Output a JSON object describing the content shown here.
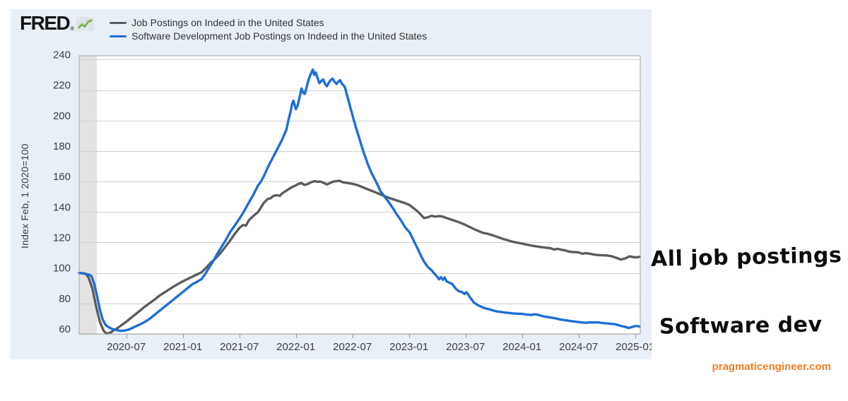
{
  "header": {
    "logo_text": "FRED",
    "logo_reg": "®",
    "legend": [
      {
        "label": "Job Postings on Indeed in the United States",
        "color": "#5a5c5e"
      },
      {
        "label": "Software Development Job Postings on Indeed in the United States",
        "color": "#1e6ed6"
      }
    ]
  },
  "y_axis_title": "Index Feb, 1 2020=100",
  "annotations": {
    "all_jobs": "All job postings",
    "software_dev": "Software dev"
  },
  "watermark": {
    "text": "pragmaticengineer.com",
    "color": "#f47d20"
  },
  "chart_data": {
    "type": "line",
    "title": "",
    "xlabel": "",
    "ylabel": "Index Feb, 1 2020=100",
    "x_unit": "months since 2020-02",
    "xlim": [
      0,
      59.55
    ],
    "ylim": [
      60,
      242.5
    ],
    "grid": true,
    "plot_bg": "#ffffff",
    "canvas_bg": "#e8eff6",
    "grid_color": "#d0d0d0",
    "frame_color": "#a6a6a6",
    "tick_text_color": "#404040",
    "recession_band_months": [
      0,
      1.875
    ],
    "recession_band_color": "#e3e3e3",
    "y_ticks": [
      60,
      80,
      100,
      120,
      140,
      160,
      180,
      200,
      220,
      240
    ],
    "x_ticks": [
      {
        "m": 5,
        "label": "2020-07"
      },
      {
        "m": 11,
        "label": "2021-01"
      },
      {
        "m": 17,
        "label": "2021-07"
      },
      {
        "m": 23,
        "label": "2022-01"
      },
      {
        "m": 29,
        "label": "2022-07"
      },
      {
        "m": 35,
        "label": "2023-01"
      },
      {
        "m": 41,
        "label": "2023-07"
      },
      {
        "m": 47,
        "label": "2024-01"
      },
      {
        "m": 53,
        "label": "2024-07"
      },
      {
        "m": 59,
        "label": "2025-01"
      }
    ],
    "series": [
      {
        "name": "Job Postings on Indeed in the United States",
        "color": "#5a5c5e",
        "points": [
          [
            0,
            100
          ],
          [
            0.7,
            99.5
          ],
          [
            1,
            97
          ],
          [
            1.4,
            90
          ],
          [
            1.8,
            78
          ],
          [
            2.2,
            68
          ],
          [
            2.6,
            62
          ],
          [
            2.9,
            60.3
          ],
          [
            3.3,
            60.8
          ],
          [
            3.7,
            62.5
          ],
          [
            4,
            63.5
          ],
          [
            4.5,
            65.8
          ],
          [
            5,
            68
          ],
          [
            5.5,
            70.5
          ],
          [
            6,
            73
          ],
          [
            6.5,
            75.5
          ],
          [
            7,
            78
          ],
          [
            7.5,
            80.3
          ],
          [
            8,
            82.5
          ],
          [
            8.5,
            85
          ],
          [
            9,
            87
          ],
          [
            9.5,
            89
          ],
          [
            10,
            91
          ],
          [
            10.5,
            92.8
          ],
          [
            11,
            94.5
          ],
          [
            11.5,
            96
          ],
          [
            12,
            97.5
          ],
          [
            12.5,
            99
          ],
          [
            13,
            100.5
          ],
          [
            13.5,
            103.5
          ],
          [
            14,
            107
          ],
          [
            14.3,
            108.5
          ],
          [
            15,
            113
          ],
          [
            15.5,
            117
          ],
          [
            16,
            121
          ],
          [
            16.5,
            125.5
          ],
          [
            17,
            129.5
          ],
          [
            17.4,
            131.5
          ],
          [
            17.7,
            131
          ],
          [
            18,
            134.5
          ],
          [
            18.5,
            137.5
          ],
          [
            19,
            140
          ],
          [
            19.3,
            143
          ],
          [
            19.6,
            146
          ],
          [
            20,
            148.5
          ],
          [
            20.3,
            149
          ],
          [
            20.6,
            150.5
          ],
          [
            21,
            151
          ],
          [
            21.3,
            150.6
          ],
          [
            21.6,
            152.5
          ],
          [
            22,
            154
          ],
          [
            22.5,
            156
          ],
          [
            23,
            157.5
          ],
          [
            23.3,
            158.5
          ],
          [
            23.6,
            159
          ],
          [
            23.9,
            157.8
          ],
          [
            24.2,
            158.2
          ],
          [
            24.6,
            159.5
          ],
          [
            25,
            160.3
          ],
          [
            25.3,
            159.8
          ],
          [
            25.6,
            160
          ],
          [
            26,
            159
          ],
          [
            26.3,
            158
          ],
          [
            26.6,
            159
          ],
          [
            27,
            160
          ],
          [
            27.3,
            160.2
          ],
          [
            27.6,
            160.5
          ],
          [
            28,
            159.5
          ],
          [
            28.5,
            159
          ],
          [
            29,
            158.5
          ],
          [
            29.6,
            157.5
          ],
          [
            30,
            156.5
          ],
          [
            30.5,
            155.2
          ],
          [
            31,
            154
          ],
          [
            31.5,
            152.8
          ],
          [
            32,
            151.5
          ],
          [
            32.5,
            150.2
          ],
          [
            33,
            149
          ],
          [
            33.5,
            148
          ],
          [
            34,
            147
          ],
          [
            34.5,
            146
          ],
          [
            35,
            144.8
          ],
          [
            35.5,
            142.5
          ],
          [
            36,
            140
          ],
          [
            36.3,
            138
          ],
          [
            36.6,
            136
          ],
          [
            37,
            136.5
          ],
          [
            37.4,
            137.5
          ],
          [
            37.8,
            137
          ],
          [
            38.2,
            137.3
          ],
          [
            38.6,
            137
          ],
          [
            39,
            136
          ],
          [
            39.5,
            135
          ],
          [
            40,
            134
          ],
          [
            40.5,
            132.8
          ],
          [
            41,
            131.5
          ],
          [
            41.5,
            130
          ],
          [
            42,
            128.5
          ],
          [
            42.8,
            126.4
          ],
          [
            43.4,
            125.6
          ],
          [
            44,
            124.5
          ],
          [
            44.5,
            123.4
          ],
          [
            45,
            122.3
          ],
          [
            45.5,
            121.4
          ],
          [
            46,
            120.5
          ],
          [
            46.5,
            119.9
          ],
          [
            47,
            119.3
          ],
          [
            47.5,
            118.6
          ],
          [
            48,
            118
          ],
          [
            48.5,
            117.5
          ],
          [
            49,
            117
          ],
          [
            49.5,
            116.6
          ],
          [
            50,
            116.3
          ],
          [
            50.4,
            115.4
          ],
          [
            50.8,
            115.8
          ],
          [
            51.2,
            115.2
          ],
          [
            51.6,
            114.8
          ],
          [
            52,
            114
          ],
          [
            52.5,
            113.7
          ],
          [
            53,
            113.5
          ],
          [
            53.4,
            112.6
          ],
          [
            53.8,
            113
          ],
          [
            54.2,
            112.6
          ],
          [
            54.6,
            112.1
          ],
          [
            55,
            111.8
          ],
          [
            55.5,
            111.6
          ],
          [
            56,
            111.5
          ],
          [
            56.5,
            111
          ],
          [
            57,
            110
          ],
          [
            57.5,
            108.8
          ],
          [
            58,
            109.6
          ],
          [
            58.4,
            110.9
          ],
          [
            58.8,
            110.4
          ],
          [
            59.1,
            110.2
          ],
          [
            59.5,
            110.6
          ]
        ]
      },
      {
        "name": "Software Development Job Postings on Indeed in the United States",
        "color": "#1e6ed6",
        "points": [
          [
            0,
            100
          ],
          [
            0.5,
            99.6
          ],
          [
            1,
            99
          ],
          [
            1.3,
            98
          ],
          [
            1.6,
            93
          ],
          [
            1.9,
            85
          ],
          [
            2.2,
            76
          ],
          [
            2.5,
            69.5
          ],
          [
            2.8,
            66
          ],
          [
            3.1,
            64.5
          ],
          [
            3.5,
            63.3
          ],
          [
            4,
            62.5
          ],
          [
            4.4,
            62
          ],
          [
            4.8,
            62.2
          ],
          [
            5.2,
            62.8
          ],
          [
            5.6,
            63.8
          ],
          [
            6,
            65
          ],
          [
            6.5,
            66.4
          ],
          [
            7,
            68
          ],
          [
            7.5,
            70
          ],
          [
            8,
            72.5
          ],
          [
            8.5,
            75
          ],
          [
            9,
            77.5
          ],
          [
            9.5,
            80
          ],
          [
            10,
            82.5
          ],
          [
            10.5,
            85
          ],
          [
            11,
            87.5
          ],
          [
            11.5,
            90
          ],
          [
            12,
            92.5
          ],
          [
            12.5,
            94.2
          ],
          [
            13,
            96
          ],
          [
            13.4,
            99.5
          ],
          [
            13.85,
            104
          ],
          [
            14.3,
            108.5
          ],
          [
            14.6,
            112
          ],
          [
            15,
            116
          ],
          [
            15.5,
            121
          ],
          [
            16,
            126.5
          ],
          [
            16.5,
            131
          ],
          [
            17,
            135.5
          ],
          [
            17.5,
            140.5
          ],
          [
            18,
            146
          ],
          [
            18.5,
            151.5
          ],
          [
            19,
            157.5
          ],
          [
            19.3,
            160
          ],
          [
            19.6,
            163.5
          ],
          [
            20,
            169
          ],
          [
            20.5,
            175
          ],
          [
            21,
            181
          ],
          [
            21.5,
            187
          ],
          [
            22,
            194
          ],
          [
            22.2,
            200
          ],
          [
            22.45,
            206
          ],
          [
            22.6,
            211
          ],
          [
            22.75,
            213
          ],
          [
            23,
            207.5
          ],
          [
            23.2,
            210
          ],
          [
            23.45,
            217
          ],
          [
            23.6,
            221
          ],
          [
            23.8,
            218
          ],
          [
            23.95,
            217.5
          ],
          [
            24.15,
            222
          ],
          [
            24.35,
            227
          ],
          [
            24.55,
            230
          ],
          [
            24.8,
            233.5
          ],
          [
            24.95,
            230
          ],
          [
            25.1,
            231.5
          ],
          [
            25.3,
            228
          ],
          [
            25.5,
            224.5
          ],
          [
            25.7,
            226
          ],
          [
            25.9,
            227
          ],
          [
            26.1,
            224
          ],
          [
            26.3,
            222.5
          ],
          [
            26.5,
            225
          ],
          [
            26.7,
            226.5
          ],
          [
            26.9,
            227.5
          ],
          [
            27.1,
            225.5
          ],
          [
            27.3,
            224
          ],
          [
            27.5,
            225.5
          ],
          [
            27.7,
            226.5
          ],
          [
            27.9,
            224
          ],
          [
            28.2,
            222
          ],
          [
            28.5,
            215
          ],
          [
            28.9,
            206
          ],
          [
            29.3,
            197
          ],
          [
            29.7,
            189
          ],
          [
            30.1,
            181
          ],
          [
            30.6,
            172
          ],
          [
            31,
            166
          ],
          [
            31.5,
            160
          ],
          [
            32,
            153.5
          ],
          [
            32.5,
            149.5
          ],
          [
            32.9,
            146
          ],
          [
            33.3,
            142.5
          ],
          [
            33.7,
            138.5
          ],
          [
            34.1,
            135
          ],
          [
            34.6,
            130
          ],
          [
            35.1,
            126.4
          ],
          [
            35.6,
            120
          ],
          [
            36,
            115
          ],
          [
            36.3,
            111
          ],
          [
            36.6,
            107.5
          ],
          [
            37,
            104
          ],
          [
            37.4,
            101.8
          ],
          [
            37.7,
            99.5
          ],
          [
            38,
            97.5
          ],
          [
            38.2,
            95.8
          ],
          [
            38.4,
            97.3
          ],
          [
            38.6,
            95.5
          ],
          [
            38.8,
            97
          ],
          [
            39,
            94.5
          ],
          [
            39.3,
            93.6
          ],
          [
            39.6,
            92.8
          ],
          [
            40,
            89.5
          ],
          [
            40.3,
            88
          ],
          [
            40.6,
            87.6
          ],
          [
            40.9,
            86.2
          ],
          [
            41.1,
            87.4
          ],
          [
            41.4,
            84.8
          ],
          [
            41.9,
            80.5
          ],
          [
            42.4,
            78.6
          ],
          [
            43,
            77
          ],
          [
            43.4,
            76.4
          ],
          [
            44,
            75.3
          ],
          [
            44.4,
            74.7
          ],
          [
            44.8,
            74.4
          ],
          [
            45.2,
            74
          ],
          [
            45.6,
            73.8
          ],
          [
            46,
            73.5
          ],
          [
            46.5,
            73.3
          ],
          [
            47,
            73.2
          ],
          [
            47.5,
            72.7
          ],
          [
            48,
            72.4
          ],
          [
            48.3,
            72.9
          ],
          [
            48.7,
            72.6
          ],
          [
            49,
            72
          ],
          [
            49.3,
            71.5
          ],
          [
            49.7,
            71.1
          ],
          [
            50,
            70.8
          ],
          [
            50.6,
            70.2
          ],
          [
            51.1,
            69.4
          ],
          [
            51.6,
            69
          ],
          [
            52,
            68.6
          ],
          [
            52.3,
            68.4
          ],
          [
            52.7,
            68
          ],
          [
            53,
            67.8
          ],
          [
            53.4,
            67.5
          ],
          [
            53.8,
            67.3
          ],
          [
            54.2,
            67.6
          ],
          [
            54.6,
            67.5
          ],
          [
            55,
            67.6
          ],
          [
            55.4,
            67.3
          ],
          [
            55.8,
            67
          ],
          [
            56.1,
            66.9
          ],
          [
            56.5,
            66.6
          ],
          [
            56.9,
            66.4
          ],
          [
            57.2,
            65.8
          ],
          [
            57.6,
            65.1
          ],
          [
            58,
            64.6
          ],
          [
            58.3,
            63.9
          ],
          [
            58.6,
            64.4
          ],
          [
            58.9,
            64.9
          ],
          [
            59.1,
            65.3
          ],
          [
            59.3,
            65.1
          ],
          [
            59.5,
            64.8
          ]
        ]
      }
    ],
    "legend_position": "top-left"
  }
}
